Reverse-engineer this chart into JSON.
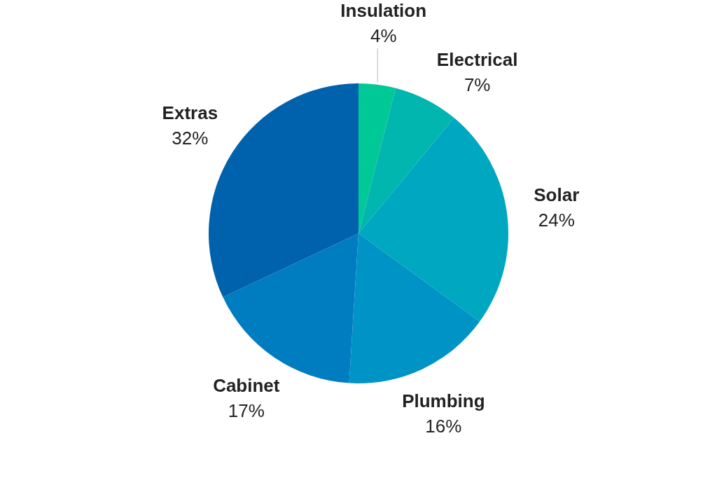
{
  "chart_data": {
    "type": "pie",
    "categories": [
      "Insulation",
      "Electrical",
      "Solar",
      "Plumbing",
      "Cabinet",
      "Extras"
    ],
    "values": [
      4,
      7,
      24,
      16,
      17,
      32
    ],
    "colors": [
      "#00c896",
      "#00b6ae",
      "#00a7c0",
      "#0093c6",
      "#007cc0",
      "#0061ad"
    ],
    "value_labels": [
      "4%",
      "7%",
      "24%",
      "16%",
      "17%",
      "32%"
    ]
  }
}
